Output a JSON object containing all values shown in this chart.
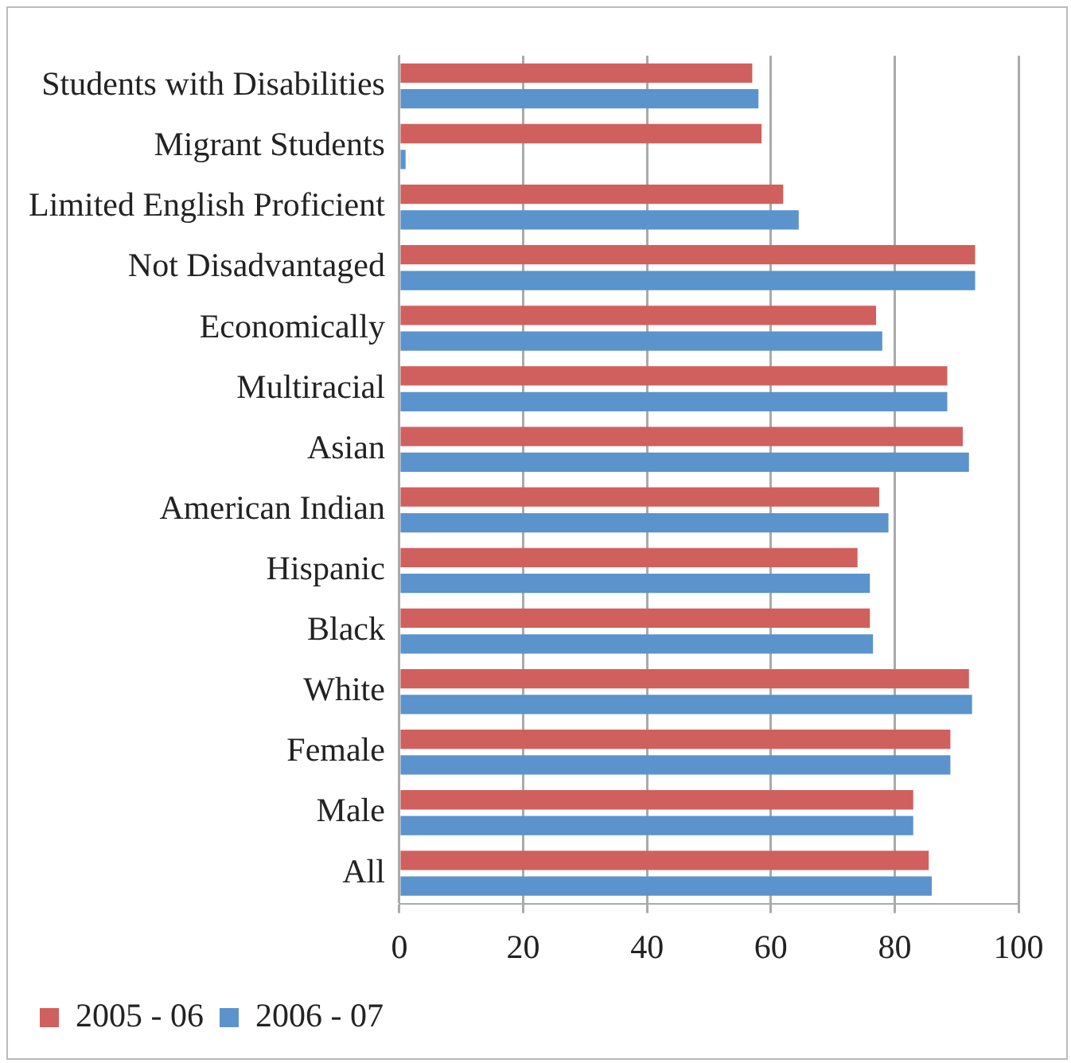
{
  "chart_data": {
    "type": "bar",
    "orientation": "horizontal",
    "categories": [
      "Students with Disabilities",
      "Migrant Students",
      "Limited English Proficient",
      "Not Disadvantaged",
      "Economically",
      "Multiracial",
      "Asian",
      "American Indian",
      "Hispanic",
      "Black",
      "White",
      "Female",
      "Male",
      "All"
    ],
    "series": [
      {
        "name": "2005 - 06",
        "color": "#d0605e",
        "values": [
          57,
          58.5,
          62,
          93,
          77,
          88.5,
          91,
          77.5,
          74,
          76,
          92,
          89,
          83,
          85.5
        ]
      },
      {
        "name": "2006 - 07",
        "color": "#5b93cc",
        "values": [
          58,
          1,
          64.5,
          93,
          78,
          88.5,
          92,
          79,
          76,
          76.5,
          92.5,
          89,
          83,
          86
        ]
      }
    ],
    "xlim": [
      0,
      100
    ],
    "xticks": [
      0,
      20,
      40,
      60,
      80,
      100
    ],
    "grid": "x",
    "legend": "bottom left"
  }
}
